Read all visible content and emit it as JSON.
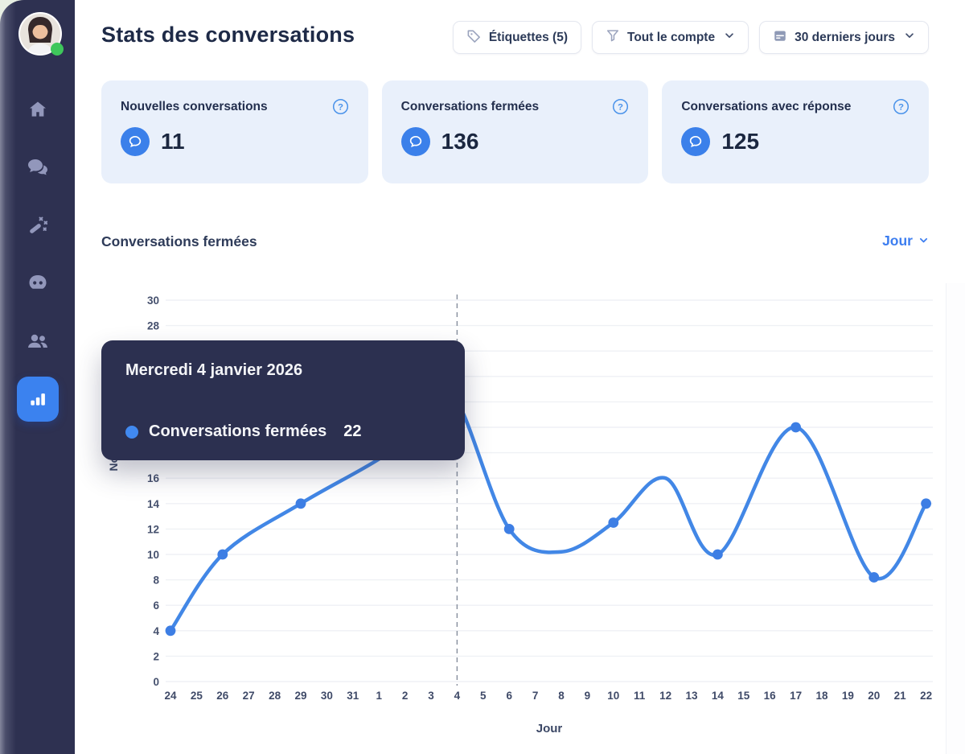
{
  "colors": {
    "accent_blue": "#3b80ea",
    "sidebar_bg": "#2e3151",
    "card_bg": "#e9f0fb",
    "tooltip_bg": "#2c3050",
    "line_blue": "#4287e6",
    "status_green": "#3ec75b"
  },
  "sidebar": {
    "items": [
      {
        "icon": "home-icon",
        "active": false
      },
      {
        "icon": "conversations-icon",
        "active": false
      },
      {
        "icon": "magic-wand-icon",
        "active": false
      },
      {
        "icon": "bot-icon",
        "active": false
      },
      {
        "icon": "contacts-icon",
        "active": false
      },
      {
        "icon": "analytics-icon",
        "active": true
      }
    ],
    "avatar_status": "online"
  },
  "header": {
    "title": "Stats des conversations",
    "filters": [
      {
        "label": "Étiquettes (5)",
        "icon": "tag-icon",
        "chevron": false
      },
      {
        "label": "Tout le compte",
        "icon": "funnel-icon",
        "chevron": true
      },
      {
        "label": "30 derniers jours",
        "icon": "calendar-icon",
        "chevron": true
      }
    ]
  },
  "stats": {
    "cards": [
      {
        "title": "Nouvelles conversations",
        "value": "11",
        "icon": "chat-bubble-icon",
        "help_icon": "help-icon"
      },
      {
        "title": "Conversations fermées",
        "value": "136",
        "icon": "chat-bubble-icon",
        "help_icon": "help-icon"
      },
      {
        "title": "Conversations avec réponse",
        "value": "125",
        "icon": "chat-bubble-icon",
        "help_icon": "help-icon"
      }
    ]
  },
  "chart_section": {
    "title": "Conversations fermées",
    "interval_label": "Jour"
  },
  "tooltip": {
    "date": "Mercredi 4 janvier 2026",
    "series_label": "Conversations fermées",
    "value": "22"
  },
  "chart_data": {
    "type": "line",
    "title": "Conversations fermées",
    "xlabel": "Jour",
    "ylabel": "Nombre",
    "x_labels": [
      "24",
      "25",
      "26",
      "27",
      "28",
      "29",
      "30",
      "31",
      "1",
      "2",
      "3",
      "4",
      "5",
      "6",
      "7",
      "8",
      "9",
      "10",
      "11",
      "12",
      "13",
      "14",
      "15",
      "16",
      "17",
      "18",
      "19",
      "20",
      "21",
      "22"
    ],
    "ylim": [
      0,
      30
    ],
    "ytick_step": 2,
    "grid": true,
    "legend": "none",
    "line_color": "#4287e6",
    "dot_color": "#3d7ee4",
    "highlight_x_label": "4",
    "points": [
      {
        "x": "24",
        "y": 4,
        "dot": true
      },
      {
        "x": "26",
        "y": 10,
        "dot": true
      },
      {
        "x": "29",
        "y": 14,
        "dot": true
      },
      {
        "x": "1",
        "y": 17.5,
        "dot": false
      },
      {
        "x": "3",
        "y": 20.5,
        "dot": false
      },
      {
        "x": "4",
        "y": 22,
        "dot": true
      },
      {
        "x": "6",
        "y": 12,
        "dot": true
      },
      {
        "x": "8",
        "y": 10.2,
        "dot": false
      },
      {
        "x": "10",
        "y": 12.5,
        "dot": true
      },
      {
        "x": "12",
        "y": 16,
        "dot": false
      },
      {
        "x": "14",
        "y": 10,
        "dot": true
      },
      {
        "x": "17",
        "y": 20,
        "dot": true
      },
      {
        "x": "20",
        "y": 8.2,
        "dot": true
      },
      {
        "x": "22",
        "y": 14,
        "dot": true
      }
    ]
  }
}
